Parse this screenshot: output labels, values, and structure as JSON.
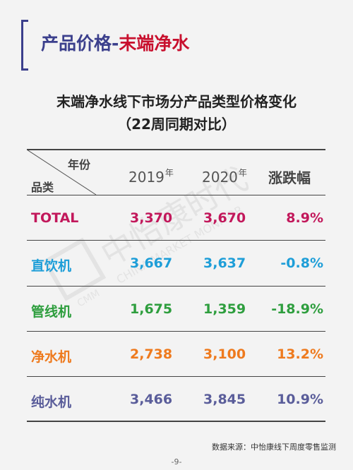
{
  "header": {
    "section_title_part1": "产品价格-",
    "section_title_part2": "末端净水",
    "accent_color": "#3b3f8c",
    "highlight_color": "#c8102e"
  },
  "title": {
    "main": "末端净水线下市场分产品类型价格变化",
    "sub": "（22周同期对比）"
  },
  "watermark": {
    "text": "中怡康时代",
    "text_en": "CHINA MARKET MONITOR",
    "logo": "CMM"
  },
  "table": {
    "corner_top": "年份",
    "corner_bottom": "品类",
    "year1": "2019",
    "year2": "2020",
    "year_suffix": "年",
    "change_header": "涨跌幅",
    "rows": [
      {
        "category": "TOTAL",
        "v2019": "3,370",
        "v2020": "3,670",
        "change": "8.9%",
        "color": "#c2185b"
      },
      {
        "category": "直饮机",
        "v2019": "3,667",
        "v2020": "3,637",
        "change": "-0.8%",
        "color": "#1e9ed8"
      },
      {
        "category": "管线机",
        "v2019": "1,675",
        "v2020": "1,359",
        "change": "-18.9%",
        "color": "#2e9e3e"
      },
      {
        "category": "净水机",
        "v2019": "2,738",
        "v2020": "3,100",
        "change": "13.2%",
        "color": "#ee7a1e"
      },
      {
        "category": "纯水机",
        "v2019": "3,466",
        "v2020": "3,845",
        "change": "10.9%",
        "color": "#5a5d9a"
      }
    ]
  },
  "footer": {
    "source": "数据来源：中怡康线下周度零售监测",
    "page": "-9-"
  }
}
